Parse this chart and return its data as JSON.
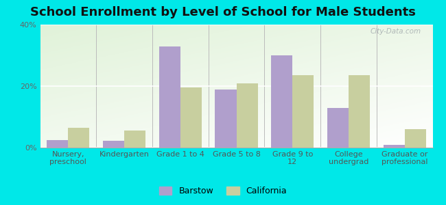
{
  "title": "School Enrollment by Level of School for Male Students",
  "categories": [
    "Nursery,\npreschool",
    "Kindergarten",
    "Grade 1 to 4",
    "Grade 5 to 8",
    "Grade 9 to\n12",
    "College\nundergrad",
    "Graduate or\nprofessional"
  ],
  "barstow": [
    2.5,
    2.3,
    33.0,
    19.0,
    30.0,
    13.0,
    1.0
  ],
  "california": [
    6.5,
    5.5,
    19.5,
    21.0,
    23.5,
    23.5,
    6.0
  ],
  "barstow_color": "#b09fcc",
  "california_color": "#c8cf9f",
  "ylim": [
    0,
    40
  ],
  "yticks": [
    0,
    20,
    40
  ],
  "ytick_labels": [
    "0%",
    "20%",
    "40%"
  ],
  "figure_bg": "#00e8e8",
  "title_fontsize": 13,
  "axis_fontsize": 8,
  "legend_fontsize": 9,
  "bar_width": 0.38,
  "watermark": "City-Data.com"
}
